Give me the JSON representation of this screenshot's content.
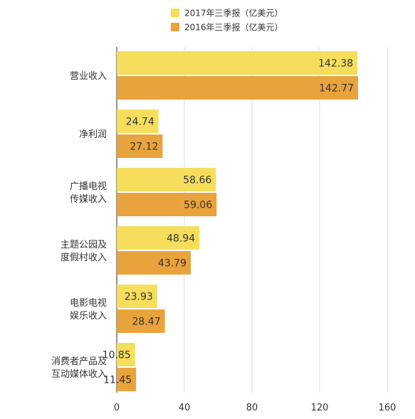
{
  "chart_data": {
    "type": "bar",
    "orientation": "horizontal",
    "categories": [
      "营业收入",
      "净利润",
      "广播电视\n传媒收入",
      "主题公园及\n度假村收入",
      "电影电视\n娱乐收入",
      "消费者产品及\n互动媒体收入"
    ],
    "series": [
      {
        "name": "2017年三季报（亿美元）",
        "color": "#F6DE5C",
        "values": [
          142.38,
          24.74,
          58.66,
          48.94,
          23.93,
          10.85
        ]
      },
      {
        "name": "2016年三季报（亿美元）",
        "color": "#E9A33C",
        "values": [
          142.77,
          27.12,
          59.06,
          43.79,
          28.47,
          11.45
        ]
      }
    ],
    "xlim": [
      0,
      160
    ],
    "xticks": [
      0,
      40,
      80,
      120,
      160
    ],
    "grid": "vertical",
    "legend": "top-center",
    "data_labels": true
  }
}
